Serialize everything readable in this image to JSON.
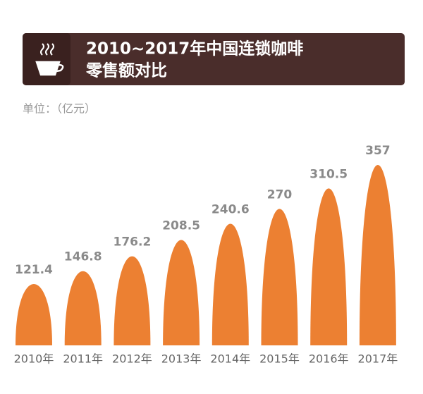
{
  "chart_data": {
    "type": "bar",
    "title_lines": [
      "2010~2017年中国连锁咖啡",
      "零售额对比"
    ],
    "unit_label": "单位：（亿元）",
    "categories": [
      "2010年",
      "2011年",
      "2012年",
      "2013年",
      "2014年",
      "2015年",
      "2016年",
      "2017年"
    ],
    "values": [
      121.4,
      146.8,
      176.2,
      208.5,
      240.6,
      270,
      310.5,
      357
    ],
    "color": "#ec8032"
  }
}
